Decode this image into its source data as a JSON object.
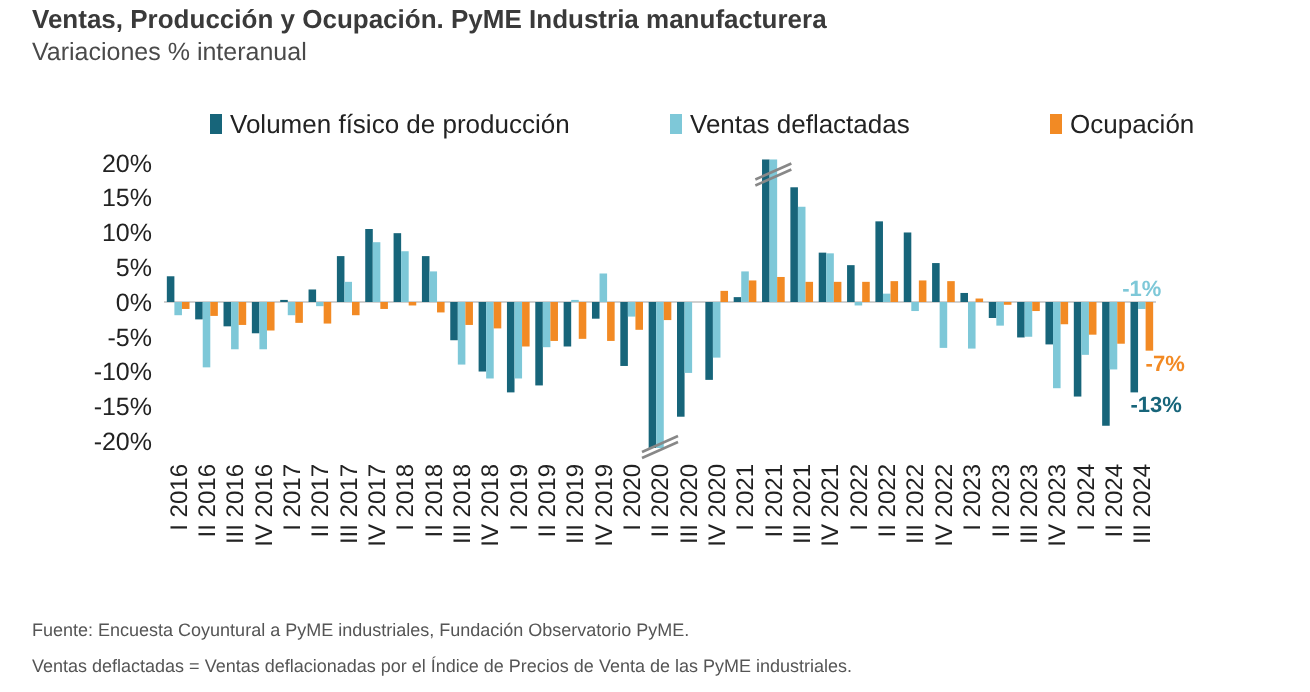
{
  "chart_data": {
    "type": "bar",
    "title": "Ventas, Producción y Ocupación. PyME Industria manufacturera",
    "subtitle": "Variaciones % interanual",
    "categories": [
      "I 2016",
      "II 2016",
      "III 2016",
      "IV 2016",
      "I 2017",
      "II 2017",
      "III 2017",
      "IV 2017",
      "I 2018",
      "II 2018",
      "III 2018",
      "IV 2018",
      "I 2019",
      "II 2019",
      "III 2019",
      "IV 2019",
      "I 2020",
      "II 2020",
      "III 2020",
      "IV 2020",
      "I 2021",
      "II 2021",
      "III 2021",
      "IV 2021",
      "I 2022",
      "II 2022",
      "III 2022",
      "IV 2022",
      "I 2023",
      "II 2023",
      "III 2023",
      "IV 2023",
      "I 2024",
      "II 2024",
      "III 2024"
    ],
    "series": [
      {
        "name": "Volumen físico de producción",
        "color": "#17657a",
        "values": [
          3.7,
          -2.5,
          -3.5,
          -4.5,
          0.3,
          1.8,
          6.6,
          10.5,
          9.9,
          6.6,
          -5.5,
          -10,
          -13,
          -12,
          -6.4,
          -2.4,
          -9.2,
          -21,
          -16.5,
          -11.2,
          0.7,
          20.5,
          16.5,
          7.1,
          5.3,
          11.6,
          10,
          5.6,
          1.3,
          -2.3,
          -5.1,
          -6.1,
          -13.6,
          -17.8,
          -13
        ],
        "value_labels": [
          null,
          null,
          null,
          null,
          null,
          null,
          null,
          null,
          null,
          null,
          null,
          null,
          null,
          null,
          null,
          null,
          null,
          null,
          null,
          null,
          null,
          null,
          null,
          null,
          null,
          null,
          null,
          null,
          null,
          null,
          null,
          null,
          null,
          null,
          "-13%"
        ]
      },
      {
        "name": "Ventas deflactadas",
        "color": "#7ec8d8",
        "values": [
          -1.9,
          -9.4,
          -6.8,
          -6.8,
          -1.9,
          -0.6,
          2.9,
          8.6,
          7.3,
          4.4,
          -9,
          -11,
          -11,
          -6.5,
          0.3,
          4.1,
          -2.1,
          -21,
          -10.2,
          -8,
          4.4,
          20.5,
          13.7,
          7,
          -0.5,
          1.2,
          -1.3,
          -6.6,
          -6.7,
          -3.4,
          -5,
          -12.4,
          -7.6,
          -9.7,
          -1
        ],
        "value_labels": [
          null,
          null,
          null,
          null,
          null,
          null,
          null,
          null,
          null,
          null,
          null,
          null,
          null,
          null,
          null,
          null,
          null,
          null,
          null,
          null,
          null,
          null,
          null,
          null,
          null,
          null,
          null,
          null,
          null,
          null,
          null,
          null,
          null,
          null,
          "-1%"
        ]
      },
      {
        "name": "Ocupación",
        "color": "#f28a24",
        "values": [
          -1,
          -2,
          -3.3,
          -4.1,
          -3,
          -3.1,
          -1.9,
          -1,
          -0.5,
          -1.5,
          -3.3,
          -3.8,
          -6.4,
          -5.6,
          -5.3,
          -5.6,
          -4,
          -2.6,
          0,
          1.6,
          3.1,
          3.6,
          2.9,
          2.9,
          2.9,
          3,
          3.1,
          3,
          0.5,
          -0.4,
          -1.3,
          -3.2,
          -4.7,
          -6,
          -7
        ],
        "value_labels": [
          null,
          null,
          null,
          null,
          null,
          null,
          null,
          null,
          null,
          null,
          null,
          null,
          null,
          null,
          null,
          null,
          null,
          null,
          null,
          null,
          null,
          null,
          null,
          null,
          null,
          null,
          null,
          null,
          null,
          null,
          null,
          null,
          null,
          null,
          "-7%"
        ]
      }
    ],
    "ylim": [
      -21,
      21
    ],
    "yticks": [
      {
        "value": -20,
        "label": "-20%"
      },
      {
        "value": -15,
        "label": "-15%"
      },
      {
        "value": -10,
        "label": "-10%"
      },
      {
        "value": -5,
        "label": "-5%"
      },
      {
        "value": 0,
        "label": "0%"
      },
      {
        "value": 5,
        "label": "5%"
      },
      {
        "value": 10,
        "label": "10%"
      },
      {
        "value": 15,
        "label": "15%"
      },
      {
        "value": 20,
        "label": "20%"
      }
    ],
    "legend": "top",
    "annotations": [
      "Fuente: Encuesta Coyuntural a PyME industriales, Fundación Observatorio PyME.",
      "Ventas deflactadas = Ventas deflacionadas por el Índice de Precios de Venta de las PyME industriales."
    ]
  }
}
